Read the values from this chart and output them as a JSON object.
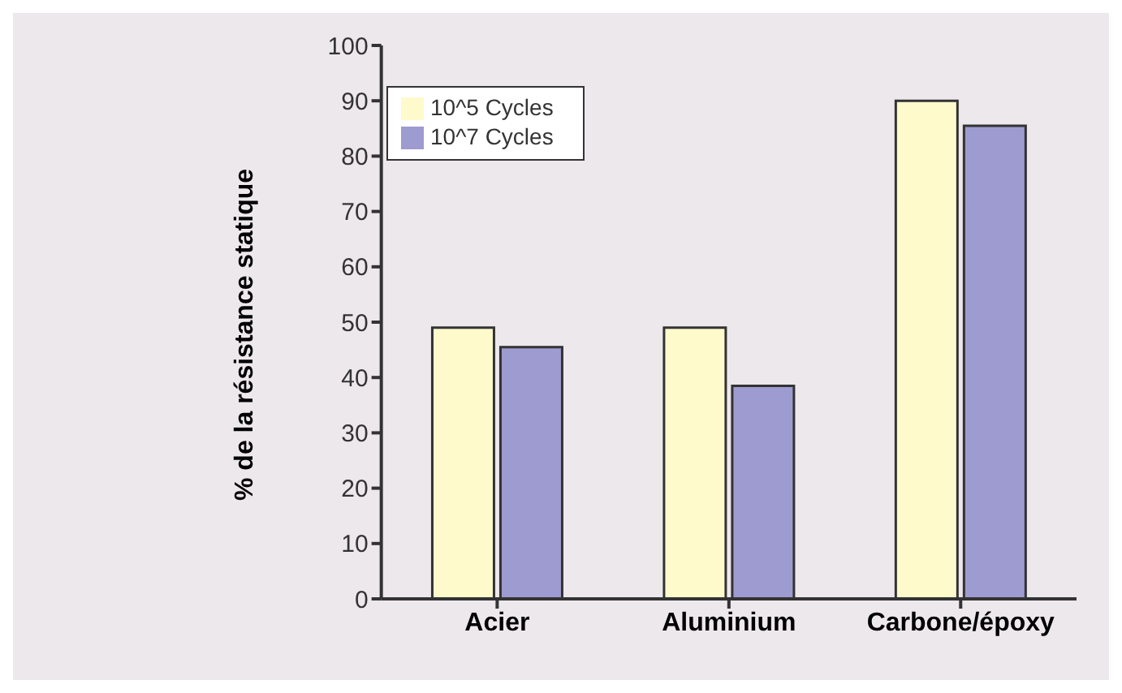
{
  "chart_data": {
    "type": "bar",
    "ylabel": "% de la résistance statique",
    "categories": [
      "Acier",
      "Aluminium",
      "Carbone/époxy"
    ],
    "series": [
      {
        "name": "10^5 Cycles",
        "color": "#fefacc",
        "values": [
          49,
          49,
          90
        ]
      },
      {
        "name": "10^7 Cycles",
        "color": "#9d9bcf",
        "values": [
          45.5,
          38.5,
          85.5
        ]
      }
    ],
    "ylim": [
      0,
      100
    ],
    "yticks": [
      0,
      10,
      20,
      30,
      40,
      50,
      60,
      70,
      80,
      90,
      100
    ],
    "grid": false,
    "legend": "top left"
  }
}
